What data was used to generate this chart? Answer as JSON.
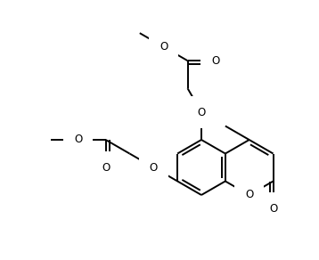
{
  "bg_color": "#ffffff",
  "line_color": "#000000",
  "lw": 1.4,
  "figsize": [
    3.58,
    2.92
  ],
  "dpi": 100,
  "font_size": 8.5,
  "xlim": [
    0,
    358
  ],
  "ylim": [
    0,
    292
  ]
}
